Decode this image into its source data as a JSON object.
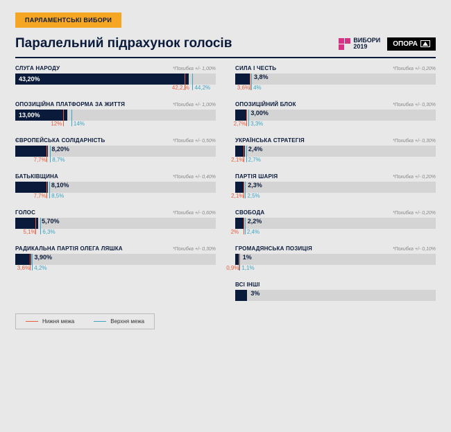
{
  "header_tag": "ПАРЛАМЕНТСЬКІ ВИБОРИ",
  "title": "Паралельний підрахунок голосів",
  "vybory_label_line1": "ВИБОРИ",
  "vybory_label_line2": "2019",
  "opora_label": "ОПОРА",
  "error_prefix": "*Похибка +/- ",
  "legend": {
    "lower": "Нижня межа",
    "upper": "Верхня межа"
  },
  "colors": {
    "bar_fill": "#0a1a3a",
    "bar_bg": "#d4d4d4",
    "lower": "#e85d3d",
    "upper": "#3da5c4",
    "accent": "#f5a623",
    "page_bg": "#e8e8e8"
  },
  "scale_max_pct": 50,
  "left": [
    {
      "name": "СЛУГА НАРОДУ",
      "pct": 43.2,
      "pct_label": "43,20%",
      "lower": 42.2,
      "lower_label": "42,2,%",
      "upper": 44.2,
      "upper_label": "44,2%",
      "err": "1,00%"
    },
    {
      "name": "ОПОЗИЦІЙНА ПЛАТФОРМА ЗА ЖИТТЯ",
      "pct": 13.0,
      "pct_label": "13,00%",
      "lower": 12,
      "lower_label": "12%",
      "upper": 14,
      "upper_label": "14%",
      "err": "1,00%"
    },
    {
      "name": "ЄВРОПЕЙСЬКА СОЛІДАРНІСТЬ",
      "pct": 8.2,
      "pct_label": "8,20%",
      "lower": 7.7,
      "lower_label": "7,7%",
      "upper": 8.7,
      "upper_label": "8,7%",
      "err": "0,50%"
    },
    {
      "name": "БАТЬКІВЩИНА",
      "pct": 8.1,
      "pct_label": "8,10%",
      "lower": 7.7,
      "lower_label": "7,7%",
      "upper": 8.5,
      "upper_label": "8,5%",
      "err": "0,40%"
    },
    {
      "name": "ГОЛОС",
      "pct": 5.7,
      "pct_label": "5,70%",
      "lower": 5.1,
      "lower_label": "5,1%",
      "upper": 6.3,
      "upper_label": "6,3%",
      "err": "0,60%"
    },
    {
      "name": "РАДИКАЛЬНА ПАРТІЯ ОЛЕГА ЛЯШКА",
      "pct": 3.9,
      "pct_label": "3,90%",
      "lower": 3.6,
      "lower_label": "3,6%",
      "upper": 4.2,
      "upper_label": "4,2%",
      "err": "0,30%"
    }
  ],
  "right": [
    {
      "name": "СИЛА І ЧЕСТЬ",
      "pct": 3.8,
      "pct_label": "3,8%",
      "lower": 3.6,
      "lower_label": "3,6%",
      "upper": 4.0,
      "upper_label": "4%",
      "err": "0,20%"
    },
    {
      "name": "ОПОЗИЦІЙНИЙ БЛОК",
      "pct": 3.0,
      "pct_label": "3,00%",
      "lower": 2.7,
      "lower_label": "2,7%",
      "upper": 3.3,
      "upper_label": "3,3%",
      "err": "0,30%"
    },
    {
      "name": "УКРАЇНСЬКА СТРАТЕГІЯ",
      "pct": 2.4,
      "pct_label": "2,4%",
      "lower": 2.1,
      "lower_label": "2,1%",
      "upper": 2.7,
      "upper_label": "2,7%",
      "err": "0,30%"
    },
    {
      "name": "ПАРТІЯ ШАРІЯ",
      "pct": 2.3,
      "pct_label": "2,3%",
      "lower": 2.1,
      "lower_label": "2,1%",
      "upper": 2.5,
      "upper_label": "2,5%",
      "err": "0,20%"
    },
    {
      "name": "СВОБОДА",
      "pct": 2.2,
      "pct_label": "2,2%",
      "lower": 2.0,
      "lower_label": "2%",
      "upper": 2.4,
      "upper_label": "2,4%",
      "err": "0,20%"
    },
    {
      "name": "ГРОМАДЯНСЬКА ПОЗИЦІЯ",
      "pct": 1.0,
      "pct_label": "1%",
      "lower": 0.9,
      "lower_label": "0,9%",
      "upper": 1.1,
      "upper_label": "1,1%",
      "err": "0,10%"
    },
    {
      "name": "ВСІ ІНШІ",
      "pct": 3.0,
      "pct_label": "3%",
      "no_bounds": true
    }
  ]
}
